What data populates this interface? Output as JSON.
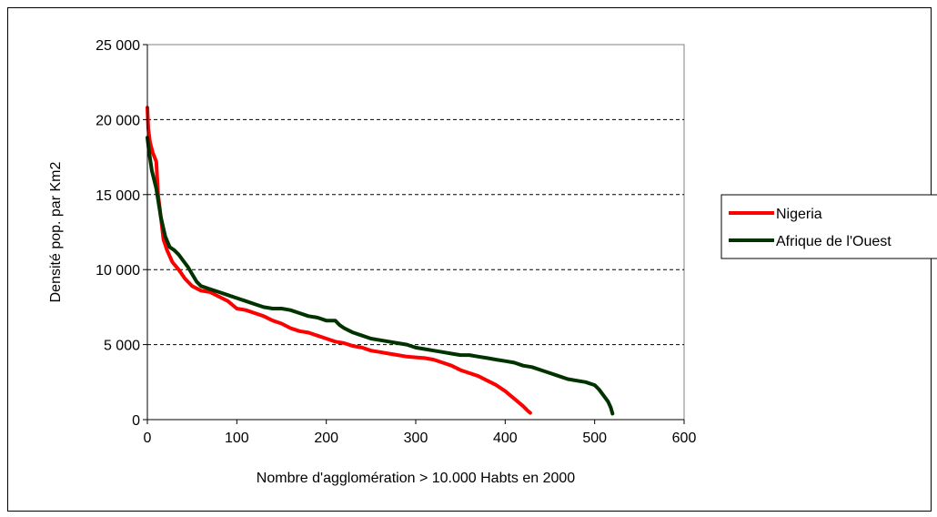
{
  "chart_data": {
    "type": "line",
    "title": "",
    "xlabel": "Nombre d'agglomération > 10.000 Habts en 2000",
    "ylabel": "Densité pop. par Km2",
    "xlim": [
      0,
      600
    ],
    "ylim": [
      0,
      25000
    ],
    "x_ticks": [
      0,
      100,
      200,
      300,
      400,
      500,
      600
    ],
    "x_tick_labels": [
      "0",
      "100",
      "200",
      "300",
      "400",
      "500",
      "600"
    ],
    "y_ticks": [
      0,
      5000,
      10000,
      15000,
      20000,
      25000
    ],
    "y_tick_labels": [
      "0",
      "5 000",
      "10 000",
      "15 000",
      "20 000",
      "25 000"
    ],
    "grid": "horizontal dashed",
    "legend_position": "right",
    "series": [
      {
        "name": "Nigeria",
        "color": "#ff0000",
        "points": [
          [
            0,
            20800
          ],
          [
            1,
            19400
          ],
          [
            3,
            18500
          ],
          [
            6,
            17800
          ],
          [
            10,
            17200
          ],
          [
            12,
            15000
          ],
          [
            15,
            13500
          ],
          [
            18,
            12000
          ],
          [
            22,
            11300
          ],
          [
            28,
            10500
          ],
          [
            35,
            10000
          ],
          [
            42,
            9400
          ],
          [
            50,
            8900
          ],
          [
            60,
            8600
          ],
          [
            70,
            8500
          ],
          [
            80,
            8200
          ],
          [
            90,
            7900
          ],
          [
            100,
            7400
          ],
          [
            110,
            7300
          ],
          [
            120,
            7100
          ],
          [
            130,
            6900
          ],
          [
            140,
            6600
          ],
          [
            150,
            6400
          ],
          [
            160,
            6100
          ],
          [
            170,
            5900
          ],
          [
            180,
            5800
          ],
          [
            190,
            5600
          ],
          [
            200,
            5400
          ],
          [
            210,
            5200
          ],
          [
            220,
            5100
          ],
          [
            230,
            4900
          ],
          [
            240,
            4800
          ],
          [
            250,
            4600
          ],
          [
            260,
            4500
          ],
          [
            270,
            4400
          ],
          [
            280,
            4300
          ],
          [
            290,
            4200
          ],
          [
            300,
            4150
          ],
          [
            310,
            4100
          ],
          [
            320,
            4000
          ],
          [
            330,
            3800
          ],
          [
            340,
            3600
          ],
          [
            350,
            3300
          ],
          [
            360,
            3100
          ],
          [
            370,
            2900
          ],
          [
            380,
            2600
          ],
          [
            390,
            2300
          ],
          [
            400,
            1900
          ],
          [
            410,
            1400
          ],
          [
            420,
            900
          ],
          [
            425,
            600
          ],
          [
            428,
            450
          ]
        ]
      },
      {
        "name": "Afrique de l'Ouest",
        "color": "#003300",
        "points": [
          [
            0,
            18800
          ],
          [
            2,
            17800
          ],
          [
            5,
            16600
          ],
          [
            10,
            15400
          ],
          [
            15,
            13500
          ],
          [
            20,
            12200
          ],
          [
            25,
            11500
          ],
          [
            30,
            11300
          ],
          [
            35,
            11000
          ],
          [
            40,
            10600
          ],
          [
            45,
            10200
          ],
          [
            50,
            9700
          ],
          [
            55,
            9200
          ],
          [
            60,
            8900
          ],
          [
            70,
            8700
          ],
          [
            80,
            8500
          ],
          [
            90,
            8300
          ],
          [
            100,
            8100
          ],
          [
            110,
            7900
          ],
          [
            120,
            7700
          ],
          [
            130,
            7500
          ],
          [
            140,
            7400
          ],
          [
            150,
            7400
          ],
          [
            160,
            7300
          ],
          [
            170,
            7100
          ],
          [
            180,
            6900
          ],
          [
            190,
            6800
          ],
          [
            200,
            6600
          ],
          [
            210,
            6600
          ],
          [
            215,
            6300
          ],
          [
            220,
            6100
          ],
          [
            230,
            5800
          ],
          [
            240,
            5600
          ],
          [
            250,
            5400
          ],
          [
            260,
            5300
          ],
          [
            270,
            5200
          ],
          [
            280,
            5100
          ],
          [
            290,
            5000
          ],
          [
            300,
            4800
          ],
          [
            310,
            4700
          ],
          [
            320,
            4600
          ],
          [
            330,
            4500
          ],
          [
            340,
            4400
          ],
          [
            350,
            4300
          ],
          [
            360,
            4300
          ],
          [
            370,
            4200
          ],
          [
            380,
            4100
          ],
          [
            390,
            4000
          ],
          [
            400,
            3900
          ],
          [
            410,
            3800
          ],
          [
            420,
            3600
          ],
          [
            430,
            3500
          ],
          [
            440,
            3300
          ],
          [
            450,
            3100
          ],
          [
            460,
            2900
          ],
          [
            470,
            2700
          ],
          [
            480,
            2600
          ],
          [
            490,
            2500
          ],
          [
            500,
            2300
          ],
          [
            505,
            2000
          ],
          [
            510,
            1600
          ],
          [
            515,
            1200
          ],
          [
            518,
            800
          ],
          [
            520,
            400
          ]
        ]
      }
    ]
  }
}
